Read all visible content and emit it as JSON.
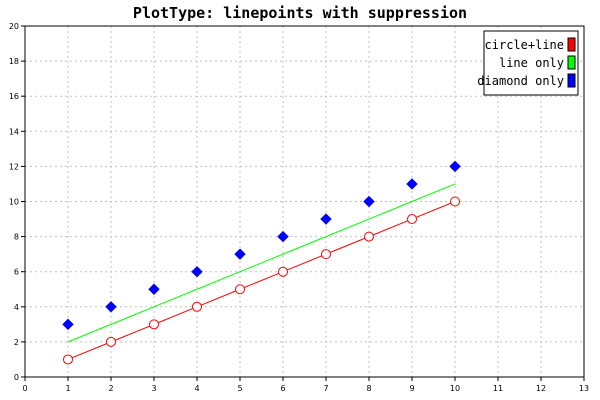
{
  "chart_data": {
    "type": "line",
    "title": "PlotType: linepoints with suppression",
    "xlabel": "",
    "ylabel": "",
    "xlim": [
      0,
      13
    ],
    "ylim": [
      0,
      20
    ],
    "x_ticks": [
      "0",
      "1",
      "2",
      "3",
      "4",
      "5",
      "6",
      "7",
      "8",
      "9",
      "10",
      "11",
      "12",
      "13"
    ],
    "y_ticks": [
      "0",
      "2",
      "4",
      "6",
      "8",
      "10",
      "12",
      "14",
      "16",
      "18",
      "20"
    ],
    "grid": true,
    "legend_position": "top-right",
    "x": [
      1,
      2,
      3,
      4,
      5,
      6,
      7,
      8,
      9,
      10
    ],
    "series": [
      {
        "name": "circle+line",
        "values": [
          1,
          2,
          3,
          4,
          5,
          6,
          7,
          8,
          9,
          10
        ],
        "color": "#ff0000",
        "line": true,
        "marker": "circle"
      },
      {
        "name": "line only",
        "values": [
          2,
          3,
          4,
          5,
          6,
          7,
          8,
          9,
          10,
          11
        ],
        "color": "#00ff00",
        "line": true,
        "marker": "none"
      },
      {
        "name": "diamond only",
        "values": [
          3,
          4,
          5,
          6,
          7,
          8,
          9,
          10,
          11,
          12
        ],
        "color": "#0000ff",
        "line": false,
        "marker": "diamond"
      }
    ]
  }
}
